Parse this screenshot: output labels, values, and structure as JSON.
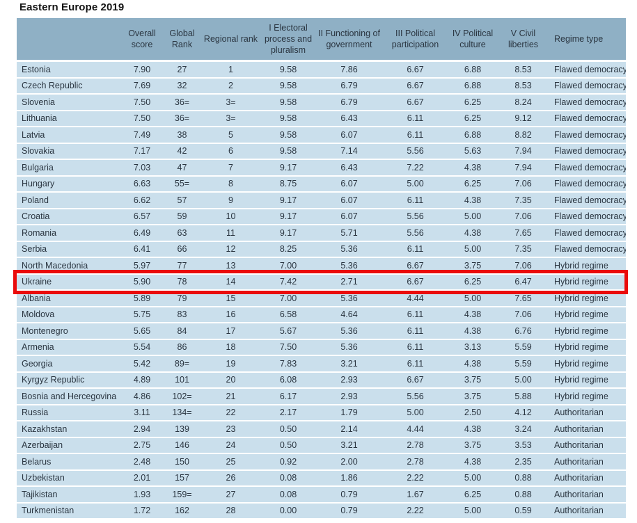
{
  "title": "Eastern Europe 2019",
  "colors": {
    "header_bg": "#8fb0c5",
    "row_bg": "#cadfec",
    "text": "#2a3540",
    "highlight_border": "#ea0b0b",
    "page_bg": "#ffffff"
  },
  "table": {
    "columns": [
      "",
      "Overall score",
      "Global Rank",
      "Regional rank",
      "I Electoral process and pluralism",
      "II Functioning of government",
      "III Political participation",
      "IV Political culture",
      "V Civil liberties",
      "Regime type"
    ],
    "rows": [
      [
        "Estonia",
        "7.90",
        "27",
        "1",
        "9.58",
        "7.86",
        "6.67",
        "6.88",
        "8.53",
        "Flawed democracy"
      ],
      [
        "Czech Republic",
        "7.69",
        "32",
        "2",
        "9.58",
        "6.79",
        "6.67",
        "6.88",
        "8.53",
        "Flawed democracy"
      ],
      [
        "Slovenia",
        "7.50",
        "36=",
        "3=",
        "9.58",
        "6.79",
        "6.67",
        "6.25",
        "8.24",
        "Flawed democracy"
      ],
      [
        "Lithuania",
        "7.50",
        "36=",
        "3=",
        "9.58",
        "6.43",
        "6.11",
        "6.25",
        "9.12",
        "Flawed democracy"
      ],
      [
        "Latvia",
        "7.49",
        "38",
        "5",
        "9.58",
        "6.07",
        "6.11",
        "6.88",
        "8.82",
        "Flawed democracy"
      ],
      [
        "Slovakia",
        "7.17",
        "42",
        "6",
        "9.58",
        "7.14",
        "5.56",
        "5.63",
        "7.94",
        "Flawed democracy"
      ],
      [
        "Bulgaria",
        "7.03",
        "47",
        "7",
        "9.17",
        "6.43",
        "7.22",
        "4.38",
        "7.94",
        "Flawed democracy"
      ],
      [
        "Hungary",
        "6.63",
        "55=",
        "8",
        "8.75",
        "6.07",
        "5.00",
        "6.25",
        "7.06",
        "Flawed democracy"
      ],
      [
        "Poland",
        "6.62",
        "57",
        "9",
        "9.17",
        "6.07",
        "6.11",
        "4.38",
        "7.35",
        "Flawed democracy"
      ],
      [
        "Croatia",
        "6.57",
        "59",
        "10",
        "9.17",
        "6.07",
        "5.56",
        "5.00",
        "7.06",
        "Flawed democracy"
      ],
      [
        "Romania",
        "6.49",
        "63",
        "11",
        "9.17",
        "5.71",
        "5.56",
        "4.38",
        "7.65",
        "Flawed democracy"
      ],
      [
        "Serbia",
        "6.41",
        "66",
        "12",
        "8.25",
        "5.36",
        "6.11",
        "5.00",
        "7.35",
        "Flawed democracy"
      ],
      [
        "North Macedonia",
        "5.97",
        "77",
        "13",
        "7.00",
        "5.36",
        "6.67",
        "3.75",
        "7.06",
        "Hybrid regime"
      ],
      [
        "Ukraine",
        "5.90",
        "78",
        "14",
        "7.42",
        "2.71",
        "6.67",
        "6.25",
        "6.47",
        "Hybrid regime"
      ],
      [
        "Albania",
        "5.89",
        "79",
        "15",
        "7.00",
        "5.36",
        "4.44",
        "5.00",
        "7.65",
        "Hybrid regime"
      ],
      [
        "Moldova",
        "5.75",
        "83",
        "16",
        "6.58",
        "4.64",
        "6.11",
        "4.38",
        "7.06",
        "Hybrid regime"
      ],
      [
        "Montenegro",
        "5.65",
        "84",
        "17",
        "5.67",
        "5.36",
        "6.11",
        "4.38",
        "6.76",
        "Hybrid regime"
      ],
      [
        "Armenia",
        "5.54",
        "86",
        "18",
        "7.50",
        "5.36",
        "6.11",
        "3.13",
        "5.59",
        "Hybrid regime"
      ],
      [
        "Georgia",
        "5.42",
        "89=",
        "19",
        "7.83",
        "3.21",
        "6.11",
        "4.38",
        "5.59",
        "Hybrid regime"
      ],
      [
        "Kyrgyz Republic",
        "4.89",
        "101",
        "20",
        "6.08",
        "2.93",
        "6.67",
        "3.75",
        "5.00",
        "Hybrid regime"
      ],
      [
        "Bosnia and Hercegovina",
        "4.86",
        "102=",
        "21",
        "6.17",
        "2.93",
        "5.56",
        "3.75",
        "5.88",
        "Hybrid regime"
      ],
      [
        "Russia",
        "3.11",
        "134=",
        "22",
        "2.17",
        "1.79",
        "5.00",
        "2.50",
        "4.12",
        "Authoritarian"
      ],
      [
        "Kazakhstan",
        "2.94",
        "139",
        "23",
        "0.50",
        "2.14",
        "4.44",
        "4.38",
        "3.24",
        "Authoritarian"
      ],
      [
        "Azerbaijan",
        "2.75",
        "146",
        "24",
        "0.50",
        "3.21",
        "2.78",
        "3.75",
        "3.53",
        "Authoritarian"
      ],
      [
        "Belarus",
        "2.48",
        "150",
        "25",
        "0.92",
        "2.00",
        "2.78",
        "4.38",
        "2.35",
        "Authoritarian"
      ],
      [
        "Uzbekistan",
        "2.01",
        "157",
        "26",
        "0.08",
        "1.86",
        "2.22",
        "5.00",
        "0.88",
        "Authoritarian"
      ],
      [
        "Tajikistan",
        "1.93",
        "159=",
        "27",
        "0.08",
        "0.79",
        "1.67",
        "6.25",
        "0.88",
        "Authoritarian"
      ],
      [
        "Turkmenistan",
        "1.72",
        "162",
        "28",
        "0.00",
        "0.79",
        "2.22",
        "5.00",
        "0.59",
        "Authoritarian"
      ]
    ]
  },
  "highlight": {
    "country": "Ukraine"
  }
}
